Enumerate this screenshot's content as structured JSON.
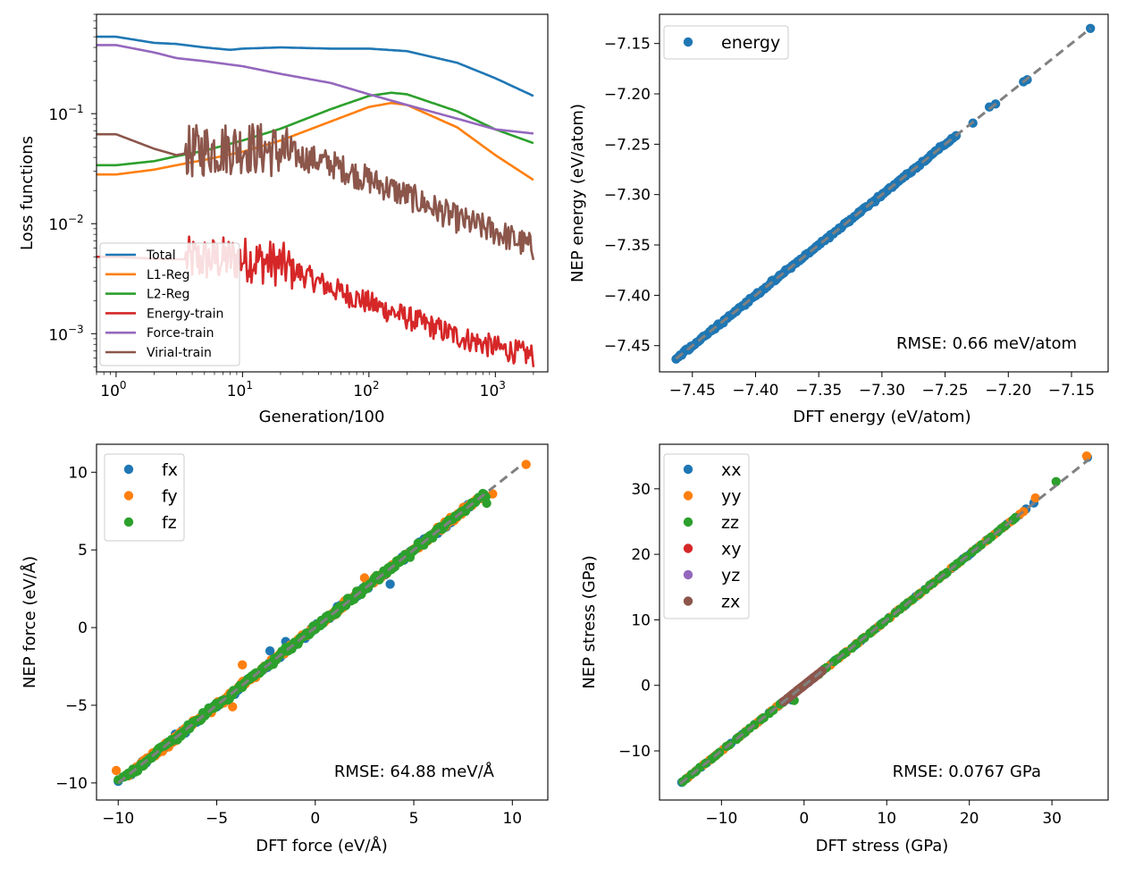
{
  "chart_data": [
    {
      "id": "loss",
      "type": "line",
      "xscale": "log",
      "yscale": "log",
      "xlim": [
        0.7,
        2600
      ],
      "ylim": [
        0.00045,
        0.8
      ],
      "xlabel": "Generation/100",
      "ylabel": "Loss functions",
      "xticks": [
        {
          "v": 1,
          "base": "10",
          "exp": "0"
        },
        {
          "v": 10,
          "base": "10",
          "exp": "1"
        },
        {
          "v": 100,
          "base": "10",
          "exp": "2"
        },
        {
          "v": 1000,
          "base": "10",
          "exp": "3"
        }
      ],
      "yticks": [
        {
          "v": 0.1,
          "base": "10",
          "exp": "−1"
        },
        {
          "v": 0.01,
          "base": "10",
          "exp": "−2"
        },
        {
          "v": 0.001,
          "base": "10",
          "exp": "−3"
        }
      ],
      "legend_position": "lower-left",
      "series": [
        {
          "name": "Total",
          "color": "#1f77b4",
          "noise": 0,
          "x": [
            0.7,
            1,
            2,
            3,
            5,
            8,
            10,
            20,
            50,
            100,
            200,
            500,
            1000,
            2000
          ],
          "y": [
            0.5,
            0.5,
            0.44,
            0.43,
            0.4,
            0.38,
            0.39,
            0.4,
            0.39,
            0.39,
            0.37,
            0.29,
            0.21,
            0.145
          ]
        },
        {
          "name": "L1-Reg",
          "color": "#ff7f0e",
          "noise": 0,
          "x": [
            0.7,
            1,
            2,
            3,
            5,
            10,
            20,
            50,
            100,
            150,
            200,
            500,
            1000,
            2000
          ],
          "y": [
            0.028,
            0.028,
            0.031,
            0.034,
            0.038,
            0.045,
            0.057,
            0.085,
            0.115,
            0.125,
            0.12,
            0.075,
            0.042,
            0.025
          ]
        },
        {
          "name": "L2-Reg",
          "color": "#2ca02c",
          "noise": 0,
          "x": [
            0.7,
            1,
            2,
            3,
            5,
            10,
            20,
            50,
            100,
            150,
            200,
            500,
            1000,
            2000
          ],
          "y": [
            0.034,
            0.034,
            0.037,
            0.041,
            0.046,
            0.057,
            0.073,
            0.11,
            0.145,
            0.155,
            0.15,
            0.105,
            0.072,
            0.054
          ]
        },
        {
          "name": "Energy-train",
          "color": "#d62728",
          "noise": 0.11,
          "x": [
            0.7,
            1,
            2,
            5,
            10,
            20,
            50,
            100,
            200,
            500,
            1000,
            2000
          ],
          "y": [
            0.005,
            0.005,
            0.0048,
            0.0047,
            0.0048,
            0.0043,
            0.0026,
            0.0019,
            0.0014,
            0.00095,
            0.00075,
            0.00063
          ]
        },
        {
          "name": "Force-train",
          "color": "#9467bd",
          "noise": 0,
          "x": [
            0.7,
            1,
            2,
            3,
            5,
            10,
            20,
            50,
            100,
            200,
            500,
            1000,
            2000
          ],
          "y": [
            0.42,
            0.42,
            0.36,
            0.32,
            0.3,
            0.27,
            0.23,
            0.19,
            0.15,
            0.12,
            0.09,
            0.072,
            0.066
          ]
        },
        {
          "name": "Virial-train",
          "color": "#8c564b",
          "noise": 0.13,
          "x": [
            0.7,
            1,
            2,
            3,
            5,
            10,
            20,
            50,
            100,
            200,
            500,
            1000,
            2000
          ],
          "y": [
            0.065,
            0.065,
            0.048,
            0.042,
            0.047,
            0.05,
            0.045,
            0.035,
            0.025,
            0.018,
            0.011,
            0.0085,
            0.006
          ]
        }
      ]
    },
    {
      "id": "energy",
      "type": "scatter",
      "xlim": [
        -7.476,
        -7.121
      ],
      "ylim": [
        -7.476,
        -7.121
      ],
      "xlabel": "DFT energy (eV/atom)",
      "ylabel": "NEP energy (eV/atom)",
      "xticks": [
        "−7.45",
        "−7.40",
        "−7.35",
        "−7.30",
        "−7.25",
        "−7.20",
        "−7.15"
      ],
      "yticks": [
        "−7.45",
        "−7.40",
        "−7.35",
        "−7.30",
        "−7.25",
        "−7.20",
        "−7.15"
      ],
      "tick_values": [
        -7.45,
        -7.4,
        -7.35,
        -7.3,
        -7.25,
        -7.2,
        -7.15
      ],
      "diagonal": [
        -7.463,
        -7.135
      ],
      "rmse": "RMSE: 0.66 meV/atom",
      "legend_position": "upper-left",
      "series": [
        {
          "name": "energy",
          "color": "#1f77b4",
          "range": [
            -7.463,
            -7.24
          ],
          "count": 170,
          "spread": 0.002,
          "extra": [
            [
              -7.135,
              -7.135
            ],
            [
              -7.21,
              -7.21
            ],
            [
              -7.215,
              -7.213
            ],
            [
              -7.188,
              -7.188
            ],
            [
              -7.185,
              -7.186
            ],
            [
              -7.228,
              -7.229
            ]
          ]
        }
      ]
    },
    {
      "id": "force",
      "type": "scatter",
      "xlim": [
        -11.1,
        11.8
      ],
      "ylim": [
        -11.1,
        11.8
      ],
      "xlabel": "DFT force (eV/Å)",
      "ylabel": "NEP force (eV/Å)",
      "xticks": [
        "−10",
        "−5",
        "0",
        "5",
        "10"
      ],
      "yticks": [
        "−10",
        "−5",
        "0",
        "5",
        "10"
      ],
      "tick_values": [
        -10,
        -5,
        0,
        5,
        10
      ],
      "diagonal": [
        -10,
        10.5
      ],
      "rmse": "RMSE: 64.88 meV/Å",
      "legend_position": "upper-left",
      "series": [
        {
          "name": "fx",
          "color": "#1f77b4",
          "range": [
            -9.5,
            8
          ],
          "count": 180,
          "spread": 0.3,
          "extra": [
            [
              -10,
              -9.9
            ],
            [
              -1.5,
              -0.9
            ],
            [
              3.8,
              2.8
            ],
            [
              -2.3,
              -1.5
            ]
          ]
        },
        {
          "name": "fy",
          "color": "#ff7f0e",
          "range": [
            -9.5,
            8.5
          ],
          "count": 180,
          "spread": 0.3,
          "extra": [
            [
              -10.1,
              -9.2
            ],
            [
              10.7,
              10.5
            ],
            [
              9,
              8.6
            ],
            [
              -3.7,
              -2.4
            ],
            [
              -4.2,
              -5.1
            ],
            [
              2.5,
              3.2
            ]
          ]
        },
        {
          "name": "fz",
          "color": "#2ca02c",
          "range": [
            -9.8,
            8.7
          ],
          "count": 240,
          "spread": 0.32,
          "extra": [
            [
              -10,
              -9.8
            ],
            [
              8.7,
              8.0
            ]
          ]
        }
      ]
    },
    {
      "id": "stress",
      "type": "scatter",
      "xlim": [
        -17.5,
        36.8
      ],
      "ylim": [
        -17.5,
        36.8
      ],
      "xlabel": "DFT stress (GPa)",
      "ylabel": "NEP stress (GPa)",
      "xticks": [
        "−10",
        "0",
        "10",
        "20",
        "30"
      ],
      "yticks": [
        "−10",
        "0",
        "10",
        "20",
        "30"
      ],
      "tick_values": [
        -10,
        0,
        10,
        20,
        30
      ],
      "diagonal": [
        -15,
        34.5
      ],
      "rmse": "RMSE: 0.0767 GPa",
      "legend_position": "upper-left",
      "series": [
        {
          "name": "xx",
          "color": "#1f77b4",
          "range": [
            -15,
            28
          ],
          "count": 60,
          "spread": 0.12,
          "extra": [
            [
              34.3,
              34.8
            ],
            [
              -1.5,
              -2.2
            ]
          ]
        },
        {
          "name": "yy",
          "color": "#ff7f0e",
          "range": [
            -14,
            27
          ],
          "count": 60,
          "spread": 0.12,
          "extra": [
            [
              34.2,
              35.0
            ],
            [
              28,
              28.6
            ]
          ]
        },
        {
          "name": "zz",
          "color": "#2ca02c",
          "range": [
            -15,
            26
          ],
          "count": 70,
          "spread": 0.12,
          "extra": [
            [
              30.5,
              31.1
            ],
            [
              -1.2,
              -2.3
            ]
          ]
        },
        {
          "name": "xy",
          "color": "#d62728",
          "range": [
            -1.8,
            1.8
          ],
          "count": 20,
          "spread": 0.05,
          "extra": []
        },
        {
          "name": "yz",
          "color": "#9467bd",
          "range": [
            -1.5,
            1.5
          ],
          "count": 18,
          "spread": 0.05,
          "extra": []
        },
        {
          "name": "zx",
          "color": "#8c564b",
          "range": [
            -2.5,
            2.2
          ],
          "count": 28,
          "spread": 0.05,
          "extra": []
        }
      ]
    }
  ]
}
